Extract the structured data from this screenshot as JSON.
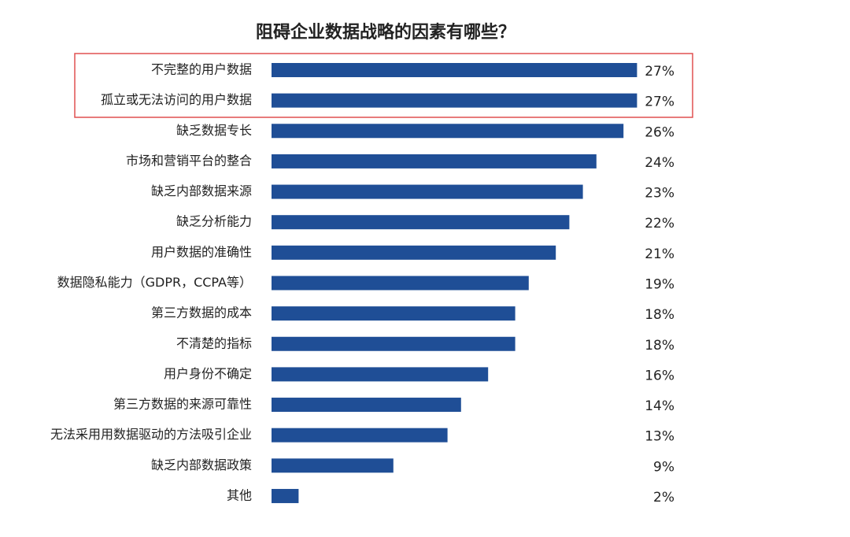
{
  "chart_data": {
    "type": "bar",
    "orientation": "horizontal",
    "title": "阻碍企业数据战略的因素有哪些？",
    "categories": [
      "不完整的用户数据",
      "孤立或无法访问的用户数据",
      "缺乏数据专长",
      "市场和营销平台的整合",
      "缺乏内部数据来源",
      "缺乏分析能力",
      "用户数据的准确性",
      "数据隐私能力（GDPR，CCPA等）",
      "第三方数据的成本",
      "不清楚的指标",
      "用户身份不确定",
      "第三方数据的来源可靠性",
      "无法采用用数据驱动的方法吸引企业",
      "缺乏内部数据政策",
      "其他"
    ],
    "values": [
      27,
      27,
      26,
      24,
      23,
      22,
      21,
      19,
      18,
      18,
      16,
      14,
      13,
      9,
      2
    ],
    "value_labels": [
      "27%",
      "27%",
      "26%",
      "24%",
      "23%",
      "22%",
      "21%",
      "19%",
      "18%",
      "18%",
      "16%",
      "14%",
      "13%",
      "9%",
      "2%"
    ],
    "color": "#1f4e96"
  }
}
